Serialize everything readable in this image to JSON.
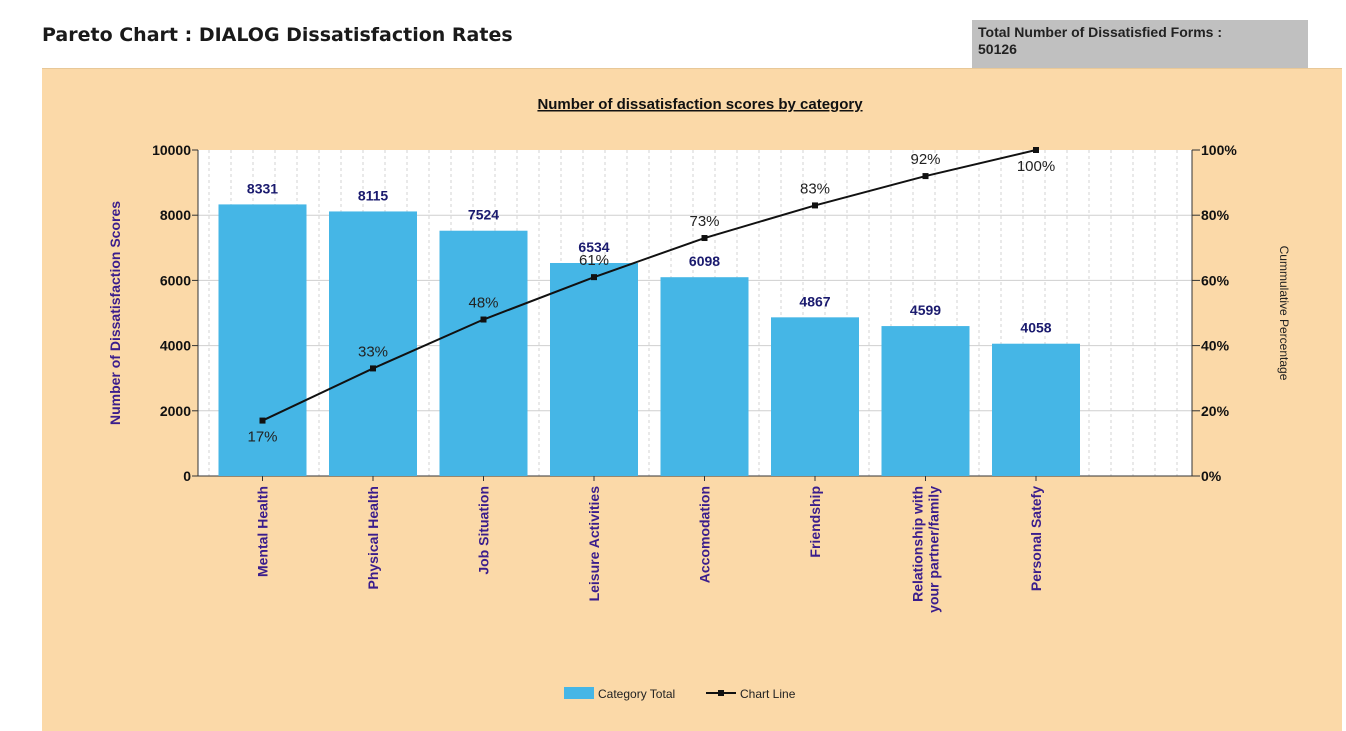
{
  "header": {
    "title": "Pareto Chart : DIALOG Dissatisfaction Rates",
    "total_label": "Total Number of Dissatisfied Forms :",
    "total_value": "50126"
  },
  "colors": {
    "panel_bg": "#fbd9a8",
    "bar": "#45b6e6",
    "line": "#111111",
    "plot_bg": "#ffffff",
    "category_text": "#3a1d8c",
    "value_text": "#1a1a6e"
  },
  "chart_data": {
    "type": "bar",
    "title": "Number of dissatisfaction scores by category",
    "xlabel": "",
    "ylabel": "Number of Dissatisfaction Scores",
    "y2label": "Cummulative Percentage",
    "ylim": [
      0,
      10000
    ],
    "yticks": [
      "0",
      "2000",
      "4000",
      "6000",
      "8000",
      "10000"
    ],
    "y2lim": [
      0,
      100
    ],
    "y2ticks": [
      "0%",
      "20%",
      "40%",
      "60%",
      "80%",
      "100%"
    ],
    "grid": true,
    "legend_position": "bottom-center",
    "categories": [
      [
        "Mental Health"
      ],
      [
        "Physical Health"
      ],
      [
        "Job Situation"
      ],
      [
        "Leisure Activities"
      ],
      [
        "Accomodation"
      ],
      [
        "Friendship"
      ],
      [
        "Relationship with",
        "your partner/family"
      ],
      [
        "Personal Satefy"
      ]
    ],
    "series": [
      {
        "name": "Category Total",
        "type": "bar",
        "values": [
          8331,
          8115,
          7524,
          6534,
          6098,
          4867,
          4599,
          4058
        ],
        "labels": [
          "8331",
          "8115",
          "7524",
          "6534",
          "6098",
          "4867",
          "4599",
          "4058"
        ]
      },
      {
        "name": "Chart Line",
        "type": "line",
        "values": [
          17,
          33,
          48,
          61,
          73,
          83,
          92,
          100
        ],
        "labels": [
          "17%",
          "33%",
          "48%",
          "61%",
          "73%",
          "83%",
          "92%",
          "100%"
        ]
      }
    ]
  }
}
